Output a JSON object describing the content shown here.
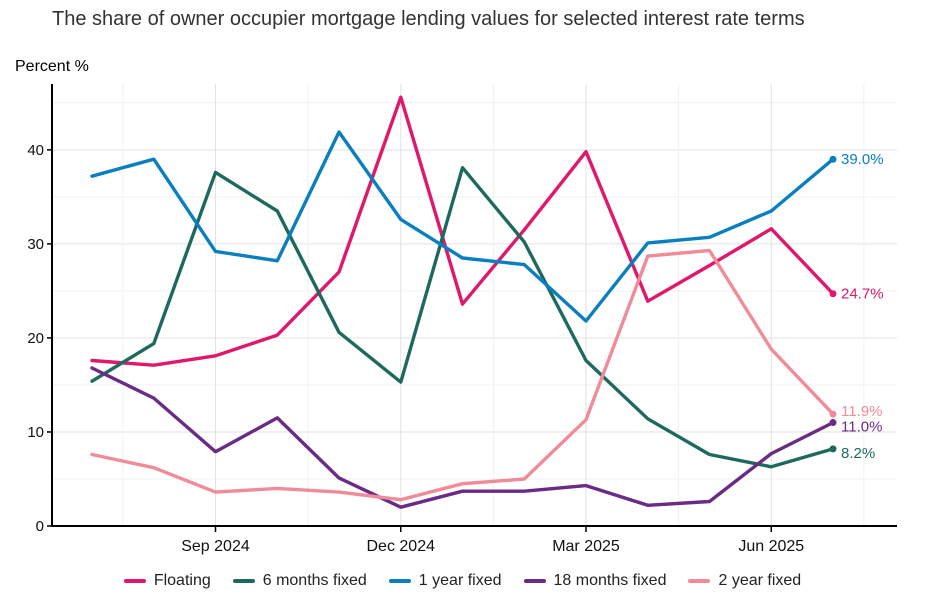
{
  "title": "The share of owner occupier mortgage lending values for selected interest rate terms",
  "chart_data": {
    "type": "line",
    "title": "The share of owner occupier mortgage lending values for selected interest rate terms",
    "ylabel": "Percent %",
    "xlabel": "",
    "x": [
      "2024-07",
      "2024-08",
      "2024-09",
      "2024-10",
      "2024-11",
      "2024-12",
      "2025-01",
      "2025-02",
      "2025-03",
      "2025-04",
      "2025-05",
      "2025-06",
      "2025-07"
    ],
    "x_tick_labels": [
      {
        "at": "2024-09",
        "label": "Sep 2024"
      },
      {
        "at": "2024-12",
        "label": "Dec 2024"
      },
      {
        "at": "2025-03",
        "label": "Mar 2025"
      },
      {
        "at": "2025-06",
        "label": "Jun 2025"
      }
    ],
    "ylim": [
      0,
      47
    ],
    "yticks": [
      0,
      10,
      20,
      30,
      40
    ],
    "grid": true,
    "legend_position": "bottom",
    "series": [
      {
        "name": "Floating",
        "color": "#e0186c",
        "values": [
          17.6,
          17.1,
          18.1,
          20.3,
          27.0,
          45.6,
          23.6,
          31.5,
          39.8,
          23.9,
          27.7,
          31.6,
          24.7
        ],
        "end_label": "24.7%"
      },
      {
        "name": "6 months fixed",
        "color": "#1d6a5c",
        "values": [
          15.4,
          19.4,
          37.6,
          33.5,
          20.6,
          15.3,
          38.1,
          30.2,
          17.6,
          11.4,
          7.6,
          6.3,
          8.2
        ],
        "end_label": "8.2%"
      },
      {
        "name": "1 year fixed",
        "color": "#0a7fbf",
        "values": [
          37.2,
          39.0,
          29.2,
          28.2,
          41.9,
          32.6,
          28.5,
          27.8,
          21.8,
          30.1,
          30.7,
          33.5,
          39.0
        ],
        "end_label": "39.0%"
      },
      {
        "name": "18 months fixed",
        "color": "#6a2b86",
        "values": [
          16.8,
          13.6,
          7.9,
          11.5,
          5.1,
          2.0,
          3.7,
          3.7,
          4.3,
          2.2,
          2.6,
          7.7,
          11.0
        ],
        "end_label": "11.0%"
      },
      {
        "name": "2 year fixed",
        "color": "#f08c9a",
        "values": [
          7.6,
          6.2,
          3.6,
          4.0,
          3.6,
          2.8,
          4.5,
          5.0,
          11.3,
          28.7,
          29.3,
          18.8,
          11.9
        ],
        "end_label": "11.9%"
      }
    ]
  }
}
